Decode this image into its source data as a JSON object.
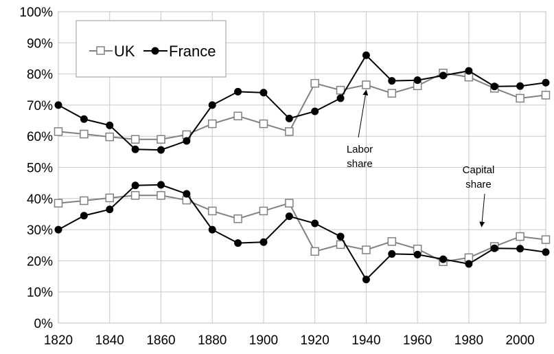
{
  "chart_data": {
    "type": "line",
    "title": "",
    "xlabel": "",
    "ylabel": "",
    "xlim": [
      1820,
      2010
    ],
    "ylim": [
      0,
      100
    ],
    "x_ticks": [
      "1820",
      "1840",
      "1860",
      "1880",
      "1900",
      "1920",
      "1940",
      "1960",
      "1980",
      "2000"
    ],
    "y_ticks": [
      "0%",
      "10%",
      "20%",
      "30%",
      "40%",
      "50%",
      "60%",
      "70%",
      "80%",
      "90%",
      "100%"
    ],
    "grid": true,
    "legend": {
      "position": "top-left",
      "entries": [
        "UK",
        "France"
      ]
    },
    "colors": {
      "uk_line": "#808080",
      "uk_marker_fill": "#ffffff",
      "uk_marker_stroke": "#808080",
      "france_line": "#000000",
      "france_marker": "#000000",
      "grid": "#c8c8c8"
    },
    "x": [
      1820,
      1830,
      1840,
      1850,
      1860,
      1870,
      1880,
      1890,
      1900,
      1910,
      1920,
      1930,
      1940,
      1950,
      1960,
      1970,
      1980,
      1990,
      2000,
      2010
    ],
    "series": [
      {
        "name": "UK",
        "group": "labor",
        "marker": "open-square",
        "values": [
          61.5,
          60.7,
          59.8,
          59.0,
          59.0,
          60.5,
          64.0,
          66.5,
          64.0,
          61.5,
          77.0,
          74.8,
          76.5,
          73.8,
          76.2,
          80.3,
          79.0,
          75.4,
          72.2,
          73.2
        ]
      },
      {
        "name": "France",
        "group": "labor",
        "marker": "filled-circle",
        "values": [
          70.0,
          65.5,
          63.5,
          55.8,
          55.6,
          58.5,
          70.0,
          74.3,
          74.0,
          65.7,
          68.0,
          72.2,
          86.0,
          77.8,
          78.0,
          79.5,
          81.0,
          76.0,
          76.1,
          77.2
        ]
      },
      {
        "name": "UK",
        "group": "capital",
        "marker": "open-square",
        "values": [
          38.5,
          39.3,
          40.2,
          41.0,
          41.0,
          39.5,
          36.0,
          33.5,
          36.0,
          38.5,
          23.0,
          25.2,
          23.5,
          26.2,
          23.8,
          19.7,
          21.0,
          24.6,
          27.8,
          26.8
        ]
      },
      {
        "name": "France",
        "group": "capital",
        "marker": "filled-circle",
        "values": [
          30.0,
          34.5,
          36.5,
          44.2,
          44.4,
          41.5,
          30.0,
          25.7,
          26.0,
          34.3,
          32.0,
          27.8,
          14.0,
          22.2,
          22.0,
          20.5,
          19.0,
          24.0,
          23.9,
          22.8
        ]
      }
    ],
    "annotations": [
      {
        "text_lines": [
          "Labor",
          "share"
        ],
        "points_to": {
          "x": 1940,
          "y": 76.5
        }
      },
      {
        "text_lines": [
          "Capital",
          "share"
        ],
        "points_to": {
          "x": 1985,
          "y": 31.0
        }
      }
    ]
  }
}
